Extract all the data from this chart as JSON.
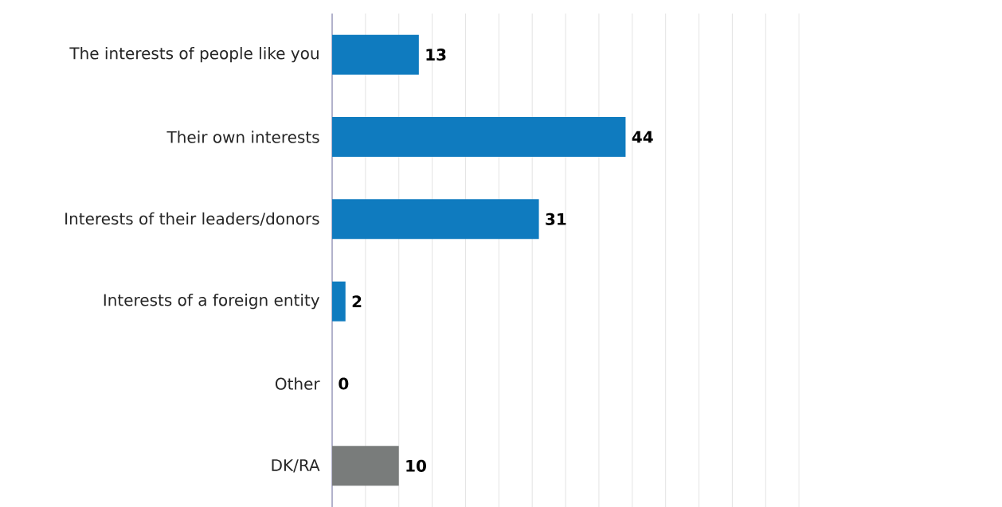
{
  "chart_data": {
    "type": "bar",
    "orientation": "horizontal",
    "categories": [
      "The interests of people like you",
      "Their own interests",
      "Interests of their leaders/donors",
      "Interests of a foreign entity",
      "Other",
      "DK/RA"
    ],
    "values": [
      13,
      44,
      31,
      2,
      0,
      10
    ],
    "colors": [
      "#0f7bbf",
      "#0f7bbf",
      "#0f7bbf",
      "#0f7bbf",
      "#0f7bbf",
      "#797c7b"
    ],
    "tick_labels": "y",
    "grid": "x",
    "data_labels": true
  }
}
